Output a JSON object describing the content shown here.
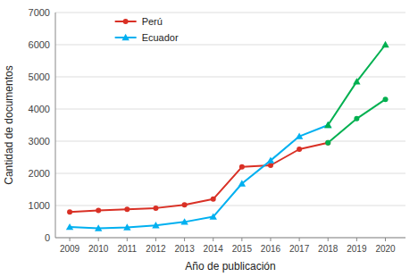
{
  "chart_data": {
    "type": "line",
    "x_label": "Año de publicación",
    "y_label": "Cantidad de documentos",
    "series": [
      {
        "name": "Perú",
        "color": "#d93025",
        "marker": "circle",
        "x": [
          2009,
          2010,
          2011,
          2012,
          2013,
          2014,
          2015,
          2016,
          2017,
          2018
        ],
        "values": [
          800,
          850,
          880,
          920,
          1020,
          1200,
          2200,
          2250,
          2750,
          2950
        ]
      },
      {
        "name": "Ecuador",
        "color": "#00b0f0",
        "marker": "triangle",
        "x": [
          2009,
          2010,
          2011,
          2012,
          2013,
          2014,
          2015,
          2016,
          2017,
          2018
        ],
        "values": [
          330,
          290,
          320,
          380,
          490,
          650,
          1680,
          2400,
          3150,
          3500
        ]
      },
      {
        "color": "#00b050",
        "marker": "circle",
        "x": [
          2018,
          2019,
          2020
        ],
        "values": [
          2950,
          3700,
          4300
        ]
      },
      {
        "color": "#00b050",
        "marker": "triangle",
        "x": [
          2018,
          2019,
          2020
        ],
        "values": [
          3500,
          4850,
          6000
        ]
      }
    ],
    "xlim": [
      2008.5,
      2020.7
    ],
    "xticks": [
      2009,
      2010,
      2011,
      2012,
      2013,
      2014,
      2015,
      2016,
      2017,
      2018,
      2019,
      2020
    ],
    "ylim": [
      0,
      7000
    ],
    "yticks": [
      0,
      1000,
      2000,
      3000,
      4000,
      5000,
      6000,
      7000
    ],
    "grid": true,
    "legend": "upper left"
  }
}
